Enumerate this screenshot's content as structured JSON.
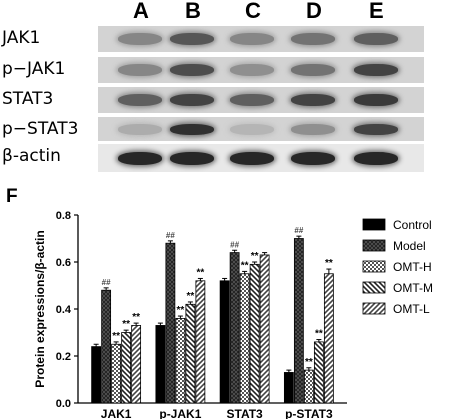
{
  "blot": {
    "lanes": [
      "A",
      "B",
      "C",
      "D",
      "E"
    ],
    "rows": [
      {
        "label": "JAK1",
        "intensity": [
          0.35,
          0.6,
          0.35,
          0.45,
          0.55
        ]
      },
      {
        "label": "p−JAK1",
        "intensity": [
          0.35,
          0.65,
          0.3,
          0.45,
          0.7
        ]
      },
      {
        "label": "STAT3",
        "intensity": [
          0.55,
          0.7,
          0.55,
          0.7,
          0.75
        ]
      },
      {
        "label": "p−STAT3",
        "intensity": [
          0.15,
          0.8,
          0.1,
          0.3,
          0.7
        ]
      },
      {
        "label": "β-actin",
        "intensity": [
          0.85,
          0.85,
          0.85,
          0.85,
          0.85
        ]
      }
    ]
  },
  "panel_label": "F",
  "chart_data": {
    "type": "bar",
    "ylabel": "Protein expressions/β-actin",
    "ylim": [
      0,
      0.8
    ],
    "yticks": [
      "0.0",
      "0.2",
      "0.4",
      "0.6",
      "0.8"
    ],
    "categories": [
      "JAK1",
      "p-JAK1",
      "STAT3",
      "p-STAT3"
    ],
    "series": [
      {
        "name": "Control",
        "values": [
          0.24,
          0.33,
          0.52,
          0.13
        ],
        "errors": [
          0.01,
          0.01,
          0.01,
          0.01
        ],
        "marks": [
          "",
          "",
          "",
          ""
        ],
        "pattern": "solid"
      },
      {
        "name": "Model",
        "values": [
          0.48,
          0.68,
          0.64,
          0.7
        ],
        "errors": [
          0.01,
          0.01,
          0.01,
          0.01
        ],
        "marks": [
          "##",
          "##",
          "##",
          "##"
        ],
        "pattern": "crosshatch"
      },
      {
        "name": "OMT-H",
        "values": [
          0.25,
          0.36,
          0.55,
          0.14
        ],
        "errors": [
          0.01,
          0.01,
          0.01,
          0.01
        ],
        "marks": [
          "**",
          "**",
          "**",
          "**"
        ],
        "pattern": "checker"
      },
      {
        "name": "OMT-M",
        "values": [
          0.3,
          0.42,
          0.59,
          0.26
        ],
        "errors": [
          0.01,
          0.01,
          0.01,
          0.01
        ],
        "marks": [
          "**",
          "**",
          "**",
          "**"
        ],
        "pattern": "diag-back"
      },
      {
        "name": "OMT-L",
        "values": [
          0.33,
          0.52,
          0.63,
          0.55
        ],
        "errors": [
          0.01,
          0.01,
          0.01,
          0.02
        ],
        "marks": [
          "**",
          "**",
          "",
          "**"
        ],
        "pattern": "diag-fwd"
      }
    ],
    "legend_position": "right",
    "grid": false
  }
}
